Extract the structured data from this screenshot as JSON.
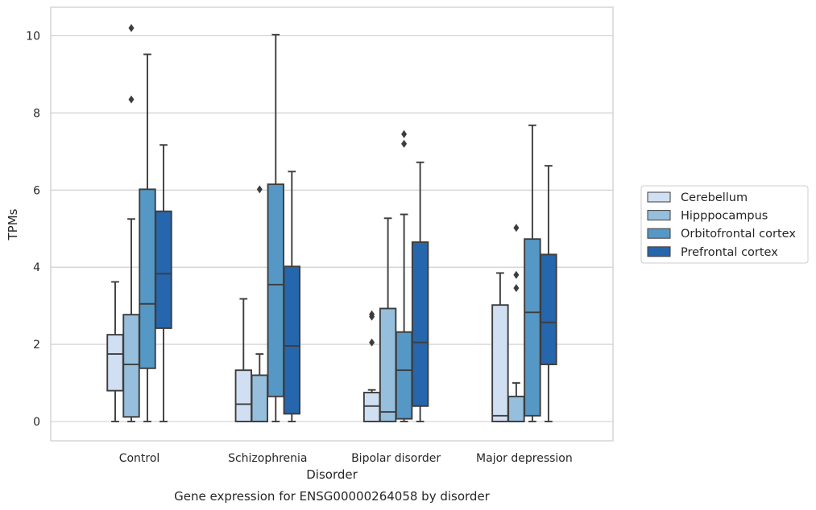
{
  "chart_data": {
    "type": "box",
    "title": "",
    "caption": "Gene expression for ENSG00000264058 by disorder",
    "xlabel": "Disorder",
    "ylabel": "TPMs",
    "ylim": [
      -0.5,
      10.7
    ],
    "yticks": [
      0,
      2,
      4,
      6,
      8,
      10
    ],
    "grid": "horizontal",
    "legend_position": "right",
    "categories": [
      "Control",
      "Schizophrenia",
      "Bipolar disorder",
      "Major depression"
    ],
    "series": [
      {
        "name": "Cerebellum",
        "color": "#d0e0f2",
        "boxes": [
          {
            "min": 0.0,
            "q1": 0.8,
            "median": 1.75,
            "q3": 2.25,
            "max": 3.62,
            "outliers": []
          },
          {
            "min": 0.0,
            "q1": 0.0,
            "median": 0.45,
            "q3": 1.33,
            "max": 3.18,
            "outliers": []
          },
          {
            "min": 0.0,
            "q1": 0.0,
            "median": 0.4,
            "q3": 0.75,
            "max": 0.82,
            "outliers": [
              2.05,
              2.72,
              2.78
            ]
          },
          {
            "min": 0.0,
            "q1": 0.0,
            "median": 0.15,
            "q3": 3.02,
            "max": 3.85,
            "outliers": []
          }
        ]
      },
      {
        "name": "Hipppocampus",
        "color": "#95bfdc",
        "boxes": [
          {
            "min": 0.0,
            "q1": 0.12,
            "median": 1.48,
            "q3": 2.77,
            "max": 5.25,
            "outliers": [
              8.35,
              10.2
            ]
          },
          {
            "min": 0.0,
            "q1": 0.0,
            "median": 0.0,
            "q3": 1.2,
            "max": 1.75,
            "outliers": [
              6.02
            ]
          },
          {
            "min": 0.0,
            "q1": 0.0,
            "median": 0.25,
            "q3": 2.93,
            "max": 5.27,
            "outliers": []
          },
          {
            "min": 0.0,
            "q1": 0.0,
            "median": 0.0,
            "q3": 0.65,
            "max": 1.0,
            "outliers": [
              3.46,
              3.8,
              5.02
            ]
          }
        ]
      },
      {
        "name": "Orbitofrontal cortex",
        "color": "#5598c6",
        "boxes": [
          {
            "min": 0.0,
            "q1": 1.38,
            "median": 3.05,
            "q3": 6.02,
            "max": 9.52,
            "outliers": []
          },
          {
            "min": 0.0,
            "q1": 0.65,
            "median": 3.55,
            "q3": 6.15,
            "max": 10.03,
            "outliers": []
          },
          {
            "min": 0.0,
            "q1": 0.07,
            "median": 1.33,
            "q3": 2.32,
            "max": 5.37,
            "outliers": [
              7.2,
              7.45
            ]
          },
          {
            "min": 0.0,
            "q1": 0.15,
            "median": 2.83,
            "q3": 4.73,
            "max": 7.68,
            "outliers": []
          }
        ]
      },
      {
        "name": "Prefrontal cortex",
        "color": "#2666ac",
        "boxes": [
          {
            "min": 0.0,
            "q1": 2.42,
            "median": 3.83,
            "q3": 5.45,
            "max": 7.17,
            "outliers": []
          },
          {
            "min": 0.0,
            "q1": 0.2,
            "median": 1.96,
            "q3": 4.02,
            "max": 6.48,
            "outliers": []
          },
          {
            "min": 0.0,
            "q1": 0.4,
            "median": 2.05,
            "q3": 4.65,
            "max": 6.72,
            "outliers": []
          },
          {
            "min": 0.0,
            "q1": 1.48,
            "median": 2.57,
            "q3": 4.33,
            "max": 6.63,
            "outliers": []
          }
        ]
      }
    ]
  }
}
